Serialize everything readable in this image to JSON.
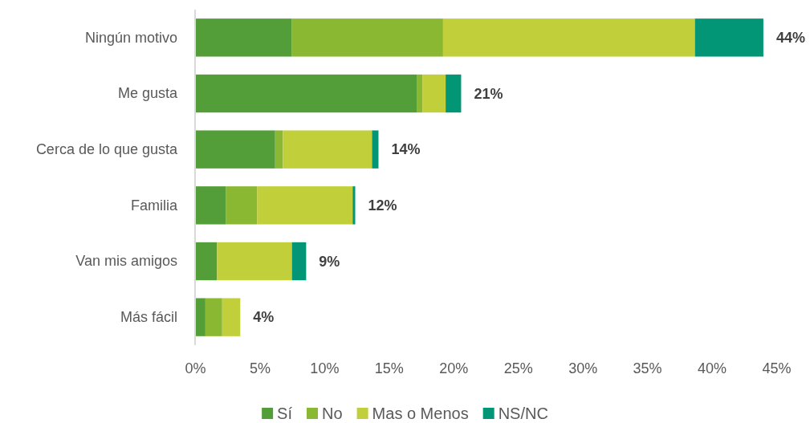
{
  "chart_data": {
    "type": "bar",
    "orientation": "horizontal",
    "stacked": true,
    "categories": [
      "Ningún motivo",
      "Me gusta",
      "Cerca de lo que gusta",
      "Familia",
      "Van mis amigos",
      "Más fácil"
    ],
    "series": [
      {
        "name": "Sí",
        "color": "#549e39",
        "values": [
          7.5,
          17.2,
          6.2,
          2.4,
          1.7,
          0.8
        ]
      },
      {
        "name": "No",
        "color": "#8ab833",
        "values": [
          11.7,
          0.4,
          0.6,
          2.4,
          0,
          1.3
        ]
      },
      {
        "name": "Mas o Menos",
        "color": "#c0cf3a",
        "values": [
          19.5,
          1.8,
          6.9,
          7.4,
          5.8,
          1.4
        ]
      },
      {
        "name": "NS/NC",
        "color": "#029676",
        "values": [
          5.3,
          1.2,
          0.5,
          0.2,
          1.1,
          0
        ]
      }
    ],
    "xlim": [
      0,
      45
    ],
    "xticks": [
      {
        "value": 0,
        "label": "0%"
      },
      {
        "value": 5,
        "label": "5%"
      },
      {
        "value": 10,
        "label": "10%"
      },
      {
        "value": 15,
        "label": "15%"
      },
      {
        "value": 20,
        "label": "20%"
      },
      {
        "value": 25,
        "label": "25%"
      },
      {
        "value": 30,
        "label": "30%"
      },
      {
        "value": 35,
        "label": "35%"
      },
      {
        "value": 40,
        "label": "40%"
      },
      {
        "value": 45,
        "label": "45%"
      }
    ],
    "totals": [
      "44%",
      "21%",
      "14%",
      "12%",
      "9%",
      "4%"
    ],
    "grid": false,
    "legend": "bottom"
  }
}
